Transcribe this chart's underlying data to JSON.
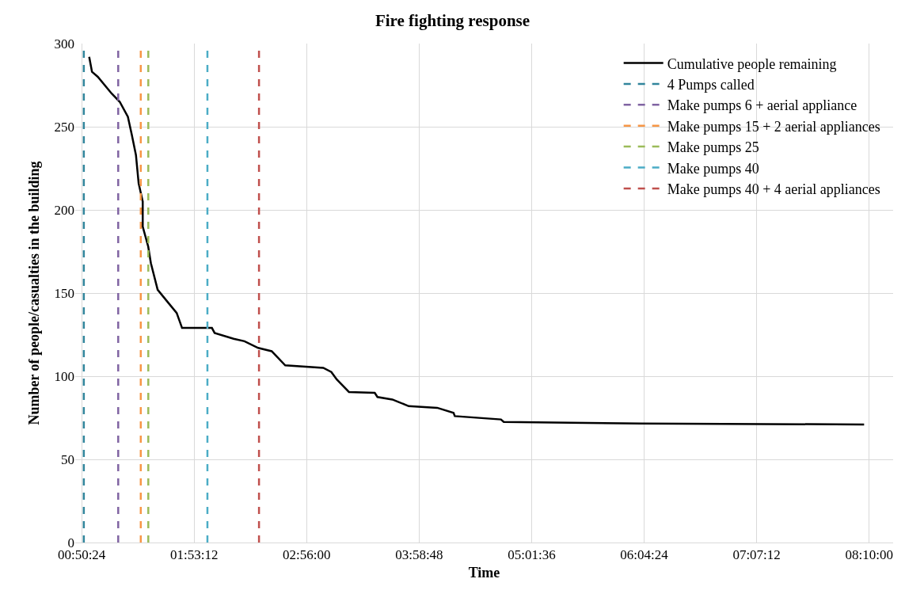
{
  "chart_data": {
    "type": "line",
    "title": "Fire fighting response",
    "xlabel": "Time",
    "ylabel": "Number of people/casualties in the building",
    "x": [
      0.91,
      0.936,
      0.99,
      1.118,
      1.194,
      1.27,
      1.307,
      1.345,
      1.37,
      1.408,
      1.408,
      1.459,
      1.484,
      1.547,
      1.648,
      1.724,
      1.774,
      2.052,
      2.077,
      2.254,
      2.355,
      2.482,
      2.608,
      2.734,
      3.088,
      3.163,
      3.214,
      3.327,
      3.567,
      3.592,
      3.731,
      3.883,
      4.148,
      4.3,
      4.312,
      4.741,
      4.767,
      5.385,
      6.04,
      8.12
    ],
    "series": [
      {
        "name": "Cumulative people remaining",
        "color": "#000000",
        "values": [
          292,
          283,
          280,
          270,
          265,
          256,
          245,
          233,
          216,
          205,
          190,
          178,
          168,
          152,
          144,
          138,
          129,
          129,
          126,
          122.5,
          121,
          117,
          115,
          106.5,
          105,
          102.5,
          98,
          90.5,
          90,
          87.5,
          86,
          82,
          81,
          78,
          76,
          74,
          72.5,
          72,
          71.5,
          71
        ]
      },
      {
        "name": "4 Pumps called",
        "color": "#31859c",
        "line_style": "dashed",
        "x": [
          0.86,
          0.86
        ],
        "values": [
          0,
          300
        ]
      },
      {
        "name": "Make pumps 6 + aerial appliance",
        "color": "#8064a2",
        "line_style": "dashed",
        "x": [
          1.18,
          1.18
        ],
        "values": [
          0,
          300
        ]
      },
      {
        "name": "Make pumps 15 + 2 aerial appliances",
        "color": "#f79646",
        "line_style": "dashed",
        "x": [
          1.39,
          1.39
        ],
        "values": [
          0,
          300
        ]
      },
      {
        "name": "Make pumps 25",
        "color": "#9bbb59",
        "line_style": "dashed",
        "x": [
          1.46,
          1.46
        ],
        "values": [
          0,
          300
        ]
      },
      {
        "name": "Make pumps 40",
        "color": "#4bacc6",
        "line_style": "dashed",
        "x": [
          2.01,
          2.01
        ],
        "values": [
          0,
          300
        ]
      },
      {
        "name": "Make pumps 40 + 4 aerial appliances",
        "color": "#c0504d",
        "line_style": "dashed",
        "x": [
          2.49,
          2.49
        ],
        "values": [
          0,
          300
        ]
      }
    ],
    "xlim": [
      0.78,
      8.39
    ],
    "xticks": [
      {
        "value": 0.84,
        "label": "00:50:24"
      },
      {
        "value": 1.8867,
        "label": "01:53:12"
      },
      {
        "value": 2.9333,
        "label": "02:56:00"
      },
      {
        "value": 3.98,
        "label": "03:58:48"
      },
      {
        "value": 5.0267,
        "label": "05:01:36"
      },
      {
        "value": 6.0733,
        "label": "06:04:24"
      },
      {
        "value": 7.12,
        "label": "07:07:12"
      },
      {
        "value": 8.1667,
        "label": "08:10:00"
      }
    ],
    "ylim": [
      0,
      300
    ],
    "yticks": [
      0,
      50,
      100,
      150,
      200,
      250,
      300
    ],
    "grid": true,
    "legend": "top right",
    "marker": "none",
    "line_style": "solid"
  }
}
